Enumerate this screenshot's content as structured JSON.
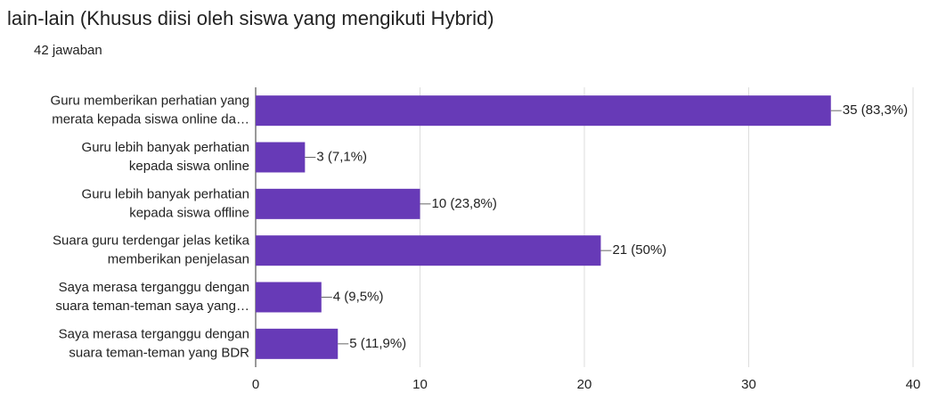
{
  "chart_data": {
    "type": "bar",
    "orientation": "horizontal",
    "title": "lain-lain (Khusus diisi oleh siswa yang mengikuti Hybrid)",
    "subtitle": "42 jawaban",
    "categories": [
      [
        "Guru memberikan perhatian yang",
        "merata kepada siswa online da…"
      ],
      [
        "Guru lebih banyak perhatian",
        "kepada siswa online"
      ],
      [
        "Guru lebih banyak perhatian",
        "kepada siswa offline"
      ],
      [
        "Suara guru terdengar jelas ketika",
        "memberikan penjelasan"
      ],
      [
        "Saya merasa terganggu dengan",
        "suara teman-teman saya yang…"
      ],
      [
        "Saya merasa terganggu dengan",
        "suara teman-teman yang BDR"
      ]
    ],
    "values": [
      35,
      3,
      10,
      21,
      4,
      5
    ],
    "value_labels": [
      "35 (83,3%)",
      "3 (7,1%)",
      "10 (23,8%)",
      "21 (50%)",
      "4 (9,5%)",
      "5 (11,9%)"
    ],
    "color": "#673ab7",
    "xlim": [
      0,
      40
    ],
    "xticks": [
      0,
      10,
      20,
      30,
      40
    ],
    "grid": true
  }
}
